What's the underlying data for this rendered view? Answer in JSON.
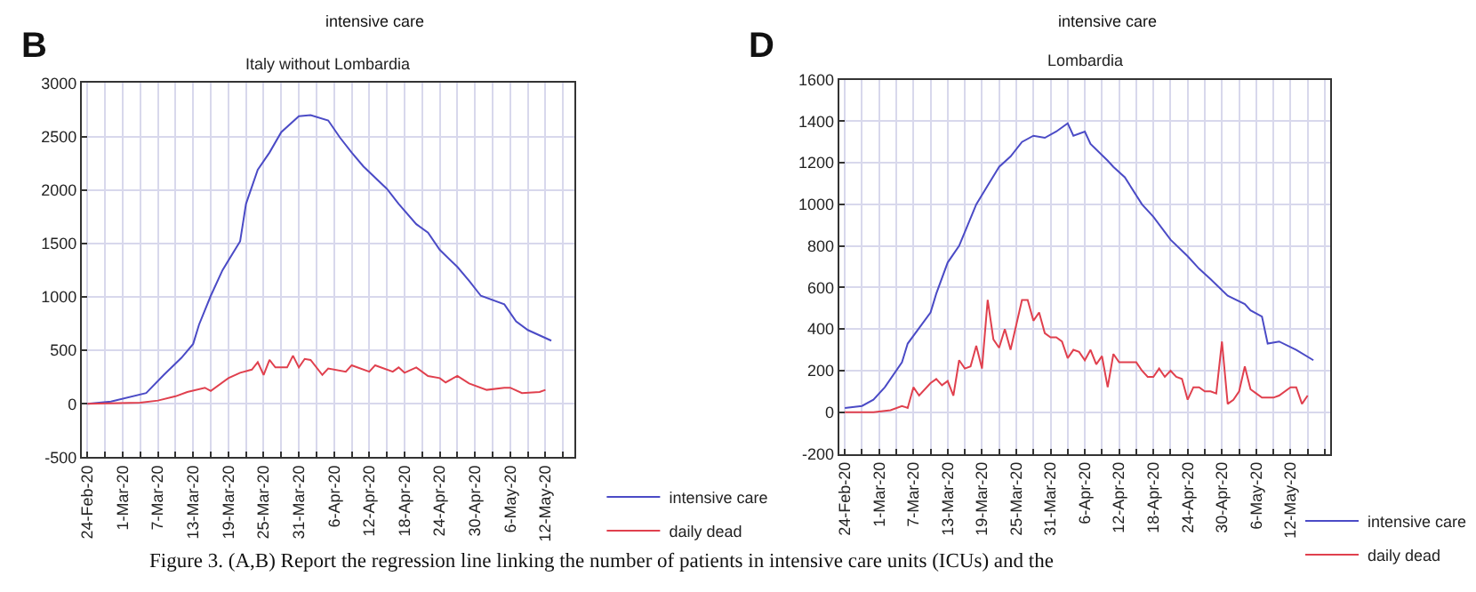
{
  "chart_data": [
    {
      "type": "line",
      "title": "Italy without Lombardia",
      "annotations": [
        "B",
        "intensive care",
        "Figure 3. (A,B) Report the regression line linking the number of patients in intensive care units (ICUs) and the"
      ],
      "series": [
        {
          "name": "intensive care",
          "color": "#4b4bc6",
          "x": [
            "--02-24",
            "--02-28",
            "--03-05",
            "--03-08",
            "--03-11",
            "--03-13",
            "--03-14",
            "--03-16",
            "--03-18",
            "--03-21",
            "--03-22",
            "--03-24",
            "--03-26",
            "--03-28",
            "--03-31",
            "--04-02",
            "--04-05",
            "--04-07",
            "--04-09",
            "--04-11",
            "--04-15",
            "--04-17",
            "--04-20",
            "--04-22",
            "--04-24",
            "--04-27",
            "--04-29",
            "--05-01",
            "--05-05",
            "--05-07",
            "--05-09",
            "--05-13"
          ],
          "values": [
            0,
            20,
            100,
            270,
            430,
            560,
            740,
            1010,
            1250,
            1520,
            1870,
            2190,
            2350,
            2540,
            2690,
            2700,
            2650,
            2490,
            2350,
            2220,
            2010,
            1870,
            1680,
            1600,
            1440,
            1280,
            1150,
            1010,
            930,
            770,
            690,
            590
          ]
        },
        {
          "name": "daily dead",
          "color": "#e0404e",
          "x": [
            "--02-24",
            "--03-04",
            "--03-07",
            "--03-10",
            "--03-12",
            "--03-15",
            "--03-16",
            "--03-19",
            "--03-21",
            "--03-23",
            "--03-24",
            "--03-25",
            "--03-26",
            "--03-27",
            "--03-29",
            "--03-30",
            "--03-31",
            "--04-01",
            "--04-02",
            "--04-04",
            "--04-05",
            "--04-08",
            "--04-09",
            "--04-12",
            "--04-13",
            "--04-16",
            "--04-17",
            "--04-18",
            "--04-20",
            "--04-22",
            "--04-24",
            "--04-25",
            "--04-27",
            "--04-29",
            "--05-02",
            "--05-05",
            "--05-06",
            "--05-08",
            "--05-11",
            "--05-12"
          ],
          "values": [
            0,
            10,
            30,
            70,
            110,
            150,
            120,
            240,
            290,
            320,
            390,
            270,
            410,
            340,
            340,
            450,
            340,
            420,
            410,
            270,
            330,
            300,
            360,
            300,
            360,
            300,
            340,
            290,
            340,
            260,
            240,
            200,
            260,
            190,
            130,
            150,
            150,
            100,
            110,
            130
          ]
        }
      ],
      "xlim": [
        "--02-23",
        "--05-17"
      ],
      "xticks": [
        {
          "value": "--02-24",
          "label": "24-Feb-20"
        },
        {
          "value": "--02-27",
          "label": null
        },
        {
          "value": "--03-01",
          "label": "1-Mar-20"
        },
        {
          "value": "--03-04",
          "label": null
        },
        {
          "value": "--03-07",
          "label": "7-Mar-20"
        },
        {
          "value": "--03-10",
          "label": null
        },
        {
          "value": "--03-13",
          "label": "13-Mar-20"
        },
        {
          "value": "--03-16",
          "label": null
        },
        {
          "value": "--03-19",
          "label": "19-Mar-20"
        },
        {
          "value": "--03-22",
          "label": null
        },
        {
          "value": "--03-25",
          "label": "25-Mar-20"
        },
        {
          "value": "--03-28",
          "label": null
        },
        {
          "value": "--03-31",
          "label": "31-Mar-20"
        },
        {
          "value": "--04-03",
          "label": null
        },
        {
          "value": "--04-06",
          "label": "6-Apr-20"
        },
        {
          "value": "--04-09",
          "label": null
        },
        {
          "value": "--04-12",
          "label": "12-Apr-20"
        },
        {
          "value": "--04-15",
          "label": null
        },
        {
          "value": "--04-18",
          "label": "18-Apr-20"
        },
        {
          "value": "--04-21",
          "label": null
        },
        {
          "value": "--04-24",
          "label": "24-Apr-20"
        },
        {
          "value": "--04-27",
          "label": null
        },
        {
          "value": "--04-30",
          "label": "30-Apr-20"
        },
        {
          "value": "--05-03",
          "label": null
        },
        {
          "value": "--05-06",
          "label": "6-May-20"
        },
        {
          "value": "--05-09",
          "label": null
        },
        {
          "value": "--05-12",
          "label": "12-May-20"
        },
        {
          "value": "--05-15",
          "label": null
        }
      ],
      "ylim": [
        -500,
        3000
      ],
      "yticks": [
        -500,
        0,
        500,
        1000,
        1500,
        2000,
        2500,
        3000
      ],
      "grid": true,
      "legend": "bottom right"
    },
    {
      "type": "line",
      "title": "Lombardia",
      "annotations": [
        "D",
        "intensive care"
      ],
      "series": [
        {
          "name": "intensive care",
          "color": "#4b4bc6",
          "x": [
            "--02-24",
            "--02-27",
            "--02-29",
            "--03-02",
            "--03-05",
            "--03-06",
            "--03-10",
            "--03-11",
            "--03-13",
            "--03-15",
            "--03-18",
            "--03-20",
            "--03-22",
            "--03-24",
            "--03-26",
            "--03-28",
            "--03-30",
            "--04-01",
            "--04-03",
            "--04-04",
            "--04-06",
            "--04-07",
            "--04-10",
            "--04-11",
            "--04-13",
            "--04-16",
            "--04-18",
            "--04-21",
            "--04-24",
            "--04-26",
            "--04-28",
            "--05-01",
            "--05-04",
            "--05-05",
            "--05-07",
            "--05-08",
            "--05-10",
            "--05-13",
            "--05-16"
          ],
          "values": [
            20,
            30,
            60,
            120,
            240,
            330,
            480,
            570,
            720,
            800,
            1000,
            1090,
            1180,
            1230,
            1300,
            1330,
            1320,
            1350,
            1390,
            1330,
            1350,
            1290,
            1210,
            1180,
            1130,
            1000,
            940,
            830,
            750,
            690,
            640,
            560,
            520,
            490,
            460,
            330,
            340,
            300,
            250
          ]
        },
        {
          "name": "daily dead",
          "color": "#e0404e",
          "x": [
            "--02-24",
            "--02-29",
            "--03-03",
            "--03-05",
            "--03-06",
            "--03-07",
            "--03-08",
            "--03-10",
            "--03-11",
            "--03-12",
            "--03-13",
            "--03-14",
            "--03-15",
            "--03-16",
            "--03-17",
            "--03-18",
            "--03-19",
            "--03-20",
            "--03-21",
            "--03-22",
            "--03-23",
            "--03-24",
            "--03-25",
            "--03-26",
            "--03-27",
            "--03-28",
            "--03-29",
            "--03-30",
            "--03-31",
            "--04-01",
            "--04-02",
            "--04-03",
            "--04-04",
            "--04-05",
            "--04-06",
            "--04-07",
            "--04-08",
            "--04-09",
            "--04-10",
            "--04-11",
            "--04-12",
            "--04-13",
            "--04-14",
            "--04-15",
            "--04-16",
            "--04-17",
            "--04-18",
            "--04-19",
            "--04-20",
            "--04-21",
            "--04-22",
            "--04-23",
            "--04-24",
            "--04-25",
            "--04-26",
            "--04-27",
            "--04-28",
            "--04-29",
            "--04-30",
            "--05-01",
            "--05-02",
            "--05-03",
            "--05-04",
            "--05-05",
            "--05-06",
            "--05-07",
            "--05-08",
            "--05-09",
            "--05-10",
            "--05-12",
            "--05-13",
            "--05-14",
            "--05-15"
          ],
          "values": [
            0,
            0,
            10,
            30,
            20,
            120,
            80,
            140,
            160,
            130,
            150,
            80,
            250,
            210,
            220,
            320,
            210,
            540,
            350,
            310,
            400,
            300,
            420,
            540,
            540,
            440,
            480,
            380,
            360,
            360,
            340,
            260,
            300,
            290,
            250,
            300,
            230,
            270,
            120,
            280,
            240,
            240,
            240,
            240,
            200,
            170,
            170,
            210,
            170,
            200,
            170,
            160,
            60,
            120,
            120,
            100,
            100,
            90,
            340,
            40,
            60,
            100,
            220,
            110,
            90,
            70,
            70,
            70,
            80,
            120,
            120,
            40,
            80
          ]
        }
      ],
      "xlim": [
        "--02-23",
        "--05-19"
      ],
      "xticks": [
        {
          "value": "--02-24",
          "label": "24-Feb-20"
        },
        {
          "value": "--02-27",
          "label": null
        },
        {
          "value": "--03-01",
          "label": "1-Mar-20"
        },
        {
          "value": "--03-04",
          "label": null
        },
        {
          "value": "--03-07",
          "label": "7-Mar-20"
        },
        {
          "value": "--03-10",
          "label": null
        },
        {
          "value": "--03-13",
          "label": "13-Mar-20"
        },
        {
          "value": "--03-16",
          "label": null
        },
        {
          "value": "--03-19",
          "label": "19-Mar-20"
        },
        {
          "value": "--03-22",
          "label": null
        },
        {
          "value": "--03-25",
          "label": "25-Mar-20"
        },
        {
          "value": "--03-28",
          "label": null
        },
        {
          "value": "--03-31",
          "label": "31-Mar-20"
        },
        {
          "value": "--04-03",
          "label": null
        },
        {
          "value": "--04-06",
          "label": "6-Apr-20"
        },
        {
          "value": "--04-09",
          "label": null
        },
        {
          "value": "--04-12",
          "label": "12-Apr-20"
        },
        {
          "value": "--04-15",
          "label": null
        },
        {
          "value": "--04-18",
          "label": "18-Apr-20"
        },
        {
          "value": "--04-21",
          "label": null
        },
        {
          "value": "--04-24",
          "label": "24-Apr-20"
        },
        {
          "value": "--04-27",
          "label": null
        },
        {
          "value": "--04-30",
          "label": "30-Apr-20"
        },
        {
          "value": "--05-03",
          "label": null
        },
        {
          "value": "--05-06",
          "label": "6-May-20"
        },
        {
          "value": "--05-09",
          "label": null
        },
        {
          "value": "--05-12",
          "label": "12-May-20"
        },
        {
          "value": "--05-15",
          "label": null
        },
        {
          "value": "--05-18",
          "label": null
        }
      ],
      "ylim": [
        -200,
        1600
      ],
      "yticks": [
        -200,
        0,
        200,
        400,
        600,
        800,
        1000,
        1200,
        1400,
        1600
      ],
      "grid": true,
      "legend": "bottom right"
    }
  ]
}
